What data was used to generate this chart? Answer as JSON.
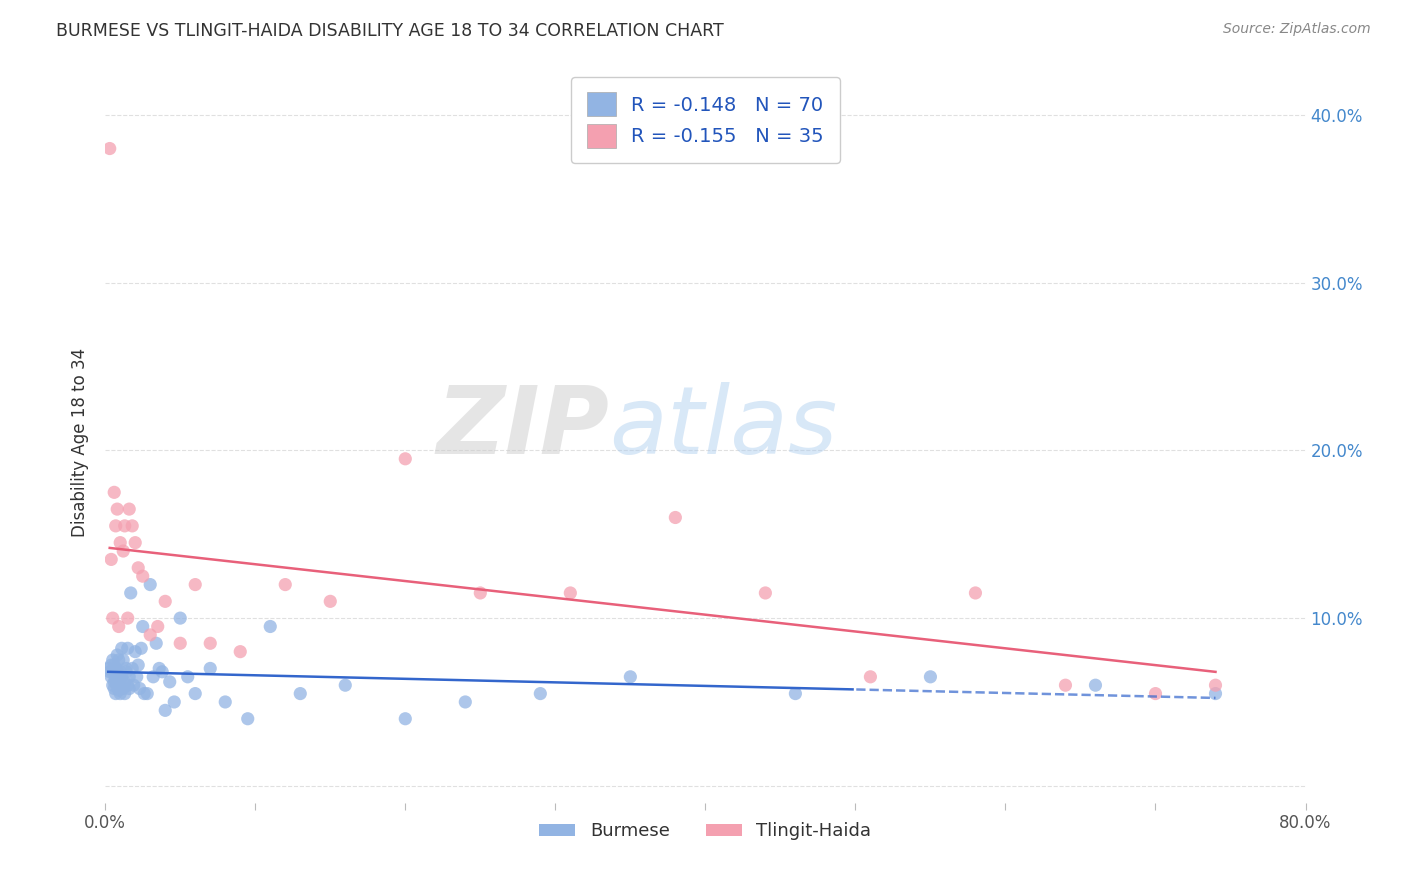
{
  "title": "BURMESE VS TLINGIT-HAIDA DISABILITY AGE 18 TO 34 CORRELATION CHART",
  "source": "Source: ZipAtlas.com",
  "ylabel": "Disability Age 18 to 34",
  "xlim": [
    0.0,
    0.8
  ],
  "ylim": [
    -0.01,
    0.42
  ],
  "xticks": [
    0.0,
    0.1,
    0.2,
    0.3,
    0.4,
    0.5,
    0.6,
    0.7,
    0.8
  ],
  "xticklabels": [
    "0.0%",
    "",
    "",
    "",
    "",
    "",
    "",
    "",
    "80.0%"
  ],
  "yticks": [
    0.0,
    0.1,
    0.2,
    0.3,
    0.4
  ],
  "yticklabels_right": [
    "",
    "10.0%",
    "20.0%",
    "30.0%",
    "40.0%"
  ],
  "burmese_color": "#92b4e3",
  "tlingit_color": "#f4a0b0",
  "legend_label1": "Burmese",
  "legend_label2": "Tlingit-Haida",
  "R_burmese": -0.148,
  "N_burmese": 70,
  "R_tlingit": -0.155,
  "N_tlingit": 35,
  "burmese_x": [
    0.002,
    0.003,
    0.004,
    0.004,
    0.005,
    0.005,
    0.005,
    0.006,
    0.006,
    0.006,
    0.007,
    0.007,
    0.007,
    0.008,
    0.008,
    0.008,
    0.009,
    0.009,
    0.009,
    0.01,
    0.01,
    0.01,
    0.011,
    0.011,
    0.012,
    0.012,
    0.013,
    0.013,
    0.014,
    0.014,
    0.015,
    0.015,
    0.016,
    0.016,
    0.017,
    0.018,
    0.019,
    0.02,
    0.021,
    0.022,
    0.023,
    0.024,
    0.025,
    0.026,
    0.028,
    0.03,
    0.032,
    0.034,
    0.036,
    0.038,
    0.04,
    0.043,
    0.046,
    0.05,
    0.055,
    0.06,
    0.07,
    0.08,
    0.095,
    0.11,
    0.13,
    0.16,
    0.2,
    0.24,
    0.29,
    0.35,
    0.46,
    0.55,
    0.66,
    0.74
  ],
  "burmese_y": [
    0.07,
    0.068,
    0.072,
    0.065,
    0.06,
    0.068,
    0.075,
    0.062,
    0.058,
    0.072,
    0.064,
    0.07,
    0.055,
    0.068,
    0.06,
    0.078,
    0.057,
    0.075,
    0.062,
    0.055,
    0.068,
    0.064,
    0.082,
    0.065,
    0.058,
    0.075,
    0.062,
    0.055,
    0.068,
    0.07,
    0.06,
    0.082,
    0.065,
    0.058,
    0.115,
    0.07,
    0.06,
    0.08,
    0.065,
    0.072,
    0.058,
    0.082,
    0.095,
    0.055,
    0.055,
    0.12,
    0.065,
    0.085,
    0.07,
    0.068,
    0.045,
    0.062,
    0.05,
    0.1,
    0.065,
    0.055,
    0.07,
    0.05,
    0.04,
    0.095,
    0.055,
    0.06,
    0.04,
    0.05,
    0.055,
    0.065,
    0.055,
    0.065,
    0.06,
    0.055
  ],
  "tlingit_x": [
    0.003,
    0.004,
    0.005,
    0.006,
    0.007,
    0.008,
    0.009,
    0.01,
    0.012,
    0.013,
    0.015,
    0.016,
    0.018,
    0.02,
    0.022,
    0.025,
    0.03,
    0.035,
    0.04,
    0.05,
    0.06,
    0.07,
    0.09,
    0.12,
    0.15,
    0.2,
    0.25,
    0.31,
    0.38,
    0.44,
    0.51,
    0.58,
    0.64,
    0.7,
    0.74
  ],
  "tlingit_y": [
    0.38,
    0.135,
    0.1,
    0.175,
    0.155,
    0.165,
    0.095,
    0.145,
    0.14,
    0.155,
    0.1,
    0.165,
    0.155,
    0.145,
    0.13,
    0.125,
    0.09,
    0.095,
    0.11,
    0.085,
    0.12,
    0.085,
    0.08,
    0.12,
    0.11,
    0.195,
    0.115,
    0.115,
    0.16,
    0.115,
    0.065,
    0.115,
    0.06,
    0.055,
    0.06
  ],
  "watermark_ZIP": "ZIP",
  "watermark_atlas": "atlas",
  "background_color": "#ffffff",
  "grid_color": "#e0e0e0",
  "title_color": "#333333",
  "source_color": "#888888",
  "tick_color_right": "#4488cc",
  "tick_color_bottom": "#555555",
  "legend_text_color": "#2255bb",
  "line_blue": "#3366cc",
  "line_pink": "#e8607a"
}
